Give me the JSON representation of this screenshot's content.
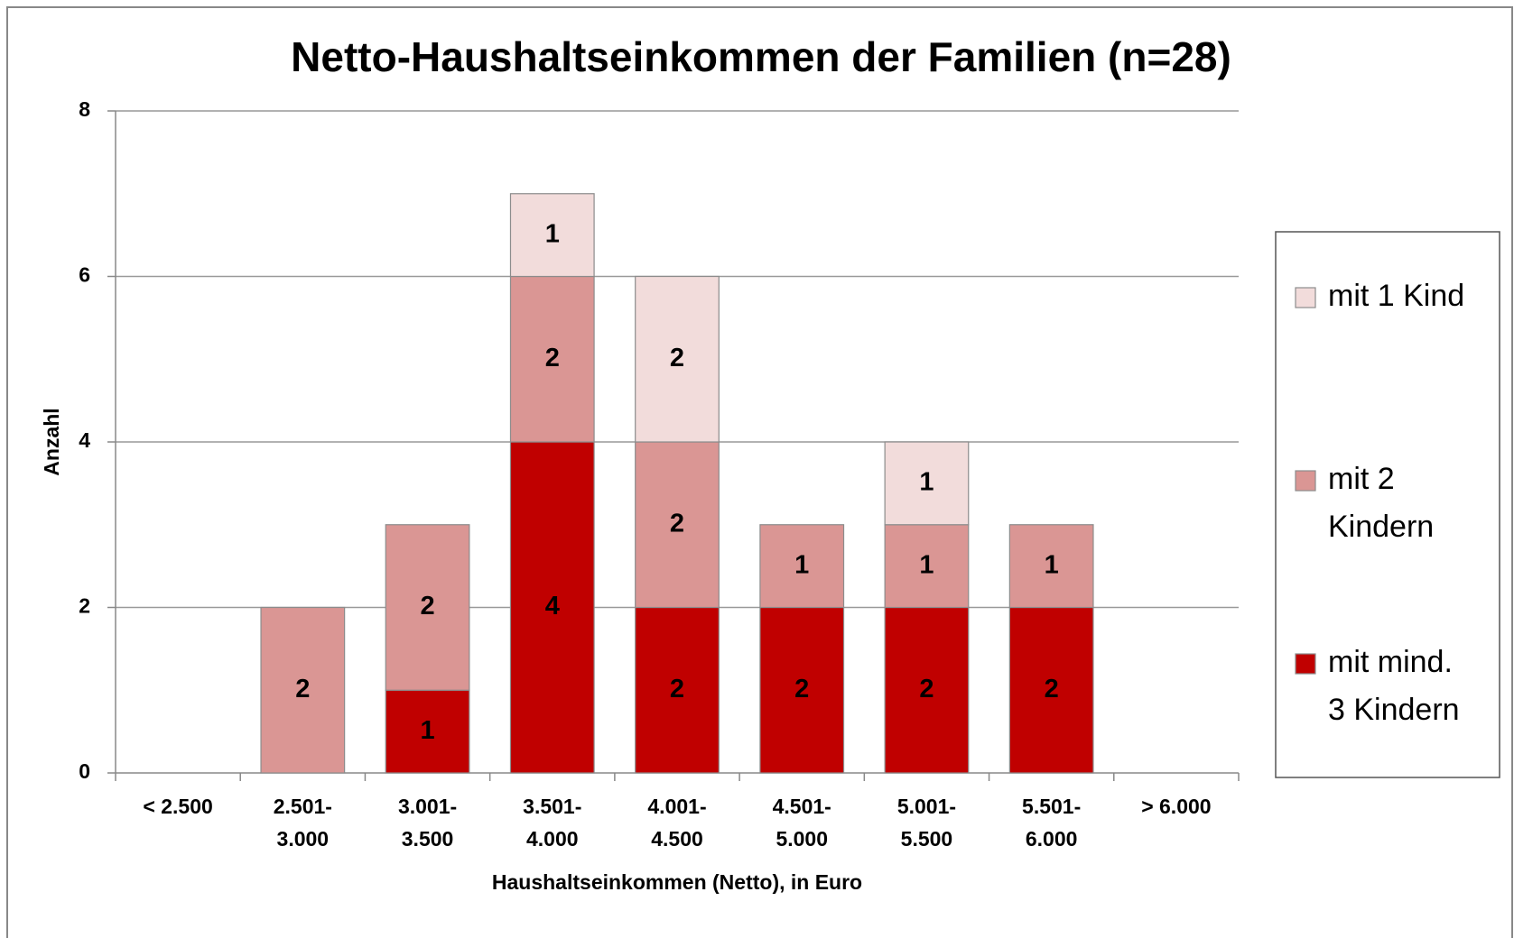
{
  "chart_data": {
    "type": "stacked_bar",
    "title": "Netto-Haushaltseinkommen der Familien (n=28)",
    "x_label": "Haushaltseinkommen (Netto),  in Euro",
    "y_label": "Anzahl",
    "categories": [
      "< 2.500",
      "2.501- 3.000",
      "3.001- 3.500",
      "3.501- 4.000",
      "4.001- 4.500",
      "4.501- 5.000",
      "5.001- 5.500",
      "5.501- 6.000",
      "> 6.000"
    ],
    "series": [
      {
        "name": "mit mind. 3 Kindern",
        "color": "#c00000",
        "values": [
          0,
          0,
          1,
          4,
          2,
          2,
          2,
          2,
          0
        ]
      },
      {
        "name": "mit 2 Kindern",
        "color": "#da9694",
        "values": [
          0,
          2,
          2,
          2,
          2,
          1,
          1,
          1,
          0
        ]
      },
      {
        "name": "mit 1 Kind",
        "color": "#f2dcdb",
        "values": [
          0,
          0,
          0,
          1,
          2,
          0,
          1,
          0,
          0
        ]
      }
    ],
    "ylim": [
      0,
      8
    ],
    "yticks": [
      0,
      2,
      4,
      6,
      8
    ],
    "grid": true,
    "legend": "right"
  }
}
